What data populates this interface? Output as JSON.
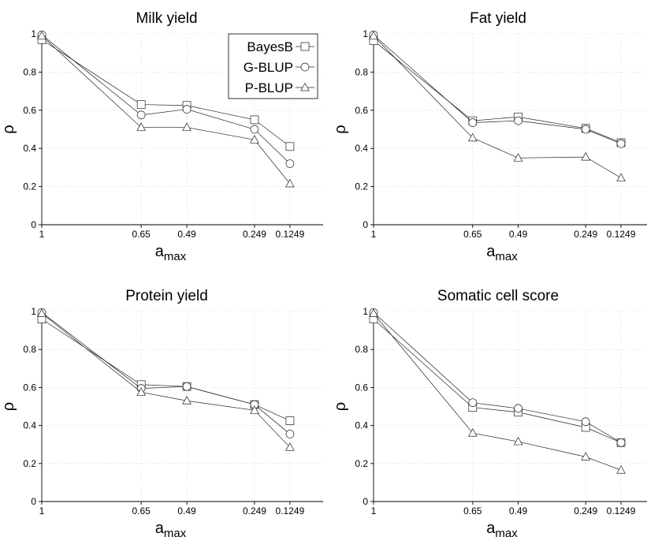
{
  "chart_data": [
    {
      "type": "line",
      "title": "Milk yield",
      "xlabel_main": "a",
      "xlabel_sub": "max",
      "ylabel": "ρ",
      "x": [
        1,
        0.65,
        0.49,
        0.249,
        0.1249
      ],
      "x_tick_labels": [
        "1",
        "0.65",
        "0.49",
        "0.249",
        "0.1249"
      ],
      "ylim": [
        0,
        1
      ],
      "y_ticks": [
        0,
        0.2,
        0.4,
        0.6,
        0.8,
        1
      ],
      "y_tick_labels": [
        "0",
        "0.2",
        "0.4",
        "0.6",
        "0.8",
        "1"
      ],
      "grid": true,
      "legend": "top-right",
      "series": [
        {
          "name": "BayesB",
          "marker": "square",
          "values": [
            0.97,
            0.63,
            0.625,
            0.55,
            0.41
          ]
        },
        {
          "name": "G-BLUP",
          "marker": "circle",
          "values": [
            0.995,
            0.575,
            0.605,
            0.5,
            0.32
          ]
        },
        {
          "name": "P-BLUP",
          "marker": "triangle",
          "values": [
            0.99,
            0.51,
            0.51,
            0.445,
            0.215
          ]
        }
      ]
    },
    {
      "type": "line",
      "title": "Fat yield",
      "xlabel_main": "a",
      "xlabel_sub": "max",
      "ylabel": "ρ",
      "x": [
        1,
        0.65,
        0.49,
        0.249,
        0.1249
      ],
      "x_tick_labels": [
        "1",
        "0.65",
        "0.49",
        "0.249",
        "0.1249"
      ],
      "ylim": [
        0,
        1
      ],
      "y_ticks": [
        0,
        0.2,
        0.4,
        0.6,
        0.8,
        1
      ],
      "y_tick_labels": [
        "0",
        "0.2",
        "0.4",
        "0.6",
        "0.8",
        "1"
      ],
      "grid": true,
      "series": [
        {
          "name": "BayesB",
          "marker": "square",
          "values": [
            0.965,
            0.545,
            0.565,
            0.505,
            0.43
          ]
        },
        {
          "name": "G-BLUP",
          "marker": "circle",
          "values": [
            0.995,
            0.535,
            0.545,
            0.5,
            0.425
          ]
        },
        {
          "name": "P-BLUP",
          "marker": "triangle",
          "values": [
            0.99,
            0.455,
            0.35,
            0.355,
            0.245
          ]
        }
      ]
    },
    {
      "type": "line",
      "title": "Protein yield",
      "xlabel_main": "a",
      "xlabel_sub": "max",
      "ylabel": "ρ",
      "x": [
        1,
        0.65,
        0.49,
        0.249,
        0.1249
      ],
      "x_tick_labels": [
        "1",
        "0.65",
        "0.49",
        "0.249",
        "0.1249"
      ],
      "ylim": [
        0,
        1
      ],
      "y_ticks": [
        0,
        0.2,
        0.4,
        0.6,
        0.8,
        1
      ],
      "y_tick_labels": [
        "0",
        "0.2",
        "0.4",
        "0.6",
        "0.8",
        "1"
      ],
      "grid": true,
      "series": [
        {
          "name": "BayesB",
          "marker": "square",
          "values": [
            0.96,
            0.615,
            0.605,
            0.51,
            0.425
          ]
        },
        {
          "name": "G-BLUP",
          "marker": "circle",
          "values": [
            0.995,
            0.595,
            0.605,
            0.51,
            0.355
          ]
        },
        {
          "name": "P-BLUP",
          "marker": "triangle",
          "values": [
            0.99,
            0.575,
            0.53,
            0.48,
            0.285
          ]
        }
      ]
    },
    {
      "type": "line",
      "title": "Somatic cell score",
      "xlabel_main": "a",
      "xlabel_sub": "max",
      "ylabel": "ρ",
      "x": [
        1,
        0.65,
        0.49,
        0.249,
        0.1249
      ],
      "x_tick_labels": [
        "1",
        "0.65",
        "0.49",
        "0.249",
        "0.1249"
      ],
      "ylim": [
        0,
        1
      ],
      "y_ticks": [
        0,
        0.2,
        0.4,
        0.6,
        0.8,
        1
      ],
      "y_tick_labels": [
        "0",
        "0.2",
        "0.4",
        "0.6",
        "0.8",
        "1"
      ],
      "grid": true,
      "series": [
        {
          "name": "BayesB",
          "marker": "square",
          "values": [
            0.96,
            0.495,
            0.47,
            0.39,
            0.31
          ]
        },
        {
          "name": "G-BLUP",
          "marker": "circle",
          "values": [
            0.995,
            0.52,
            0.49,
            0.42,
            0.31
          ]
        },
        {
          "name": "P-BLUP",
          "marker": "triangle",
          "values": [
            0.99,
            0.36,
            0.315,
            0.235,
            0.165
          ]
        }
      ]
    }
  ]
}
